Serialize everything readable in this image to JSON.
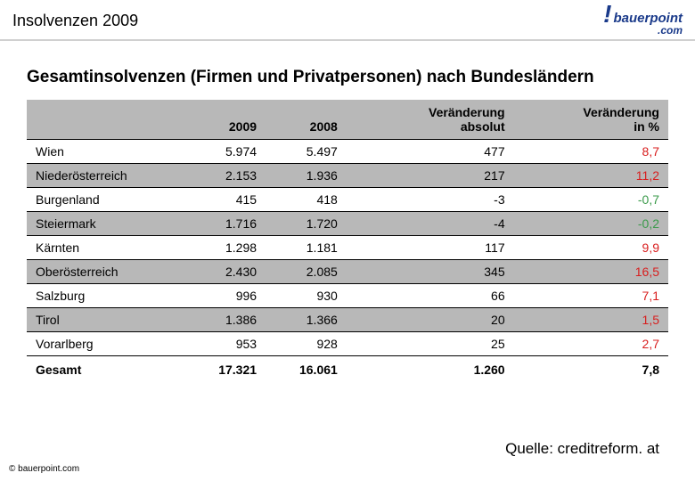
{
  "header": {
    "title": "Insolvenzen 2009",
    "logo_main": "bauerpoint",
    "logo_sub": ".com"
  },
  "main_title": "Gesamtinsolvenzen (Firmen und Privatpersonen) nach Bundesländern",
  "table": {
    "columns": [
      "",
      "2009",
      "2008",
      "Veränderung absolut",
      "Veränderung in %"
    ],
    "col_align": [
      "left",
      "right",
      "right",
      "right",
      "right"
    ],
    "header_bg": "#b8b8b8",
    "alt_row_bg": "#b8b8b8",
    "rows": [
      {
        "label": "Wien",
        "y2009": "5.974",
        "y2008": "5.497",
        "abs": "477",
        "pct": "8,7",
        "pct_sign": "pos",
        "alt": false
      },
      {
        "label": "Niederösterreich",
        "y2009": "2.153",
        "y2008": "1.936",
        "abs": "217",
        "pct": "11,2",
        "pct_sign": "pos",
        "alt": true
      },
      {
        "label": "Burgenland",
        "y2009": "415",
        "y2008": "418",
        "abs": "-3",
        "pct": "-0,7",
        "pct_sign": "neg",
        "alt": false
      },
      {
        "label": "Steiermark",
        "y2009": "1.716",
        "y2008": "1.720",
        "abs": "-4",
        "pct": "-0,2",
        "pct_sign": "neg",
        "alt": true
      },
      {
        "label": "Kärnten",
        "y2009": "1.298",
        "y2008": "1.181",
        "abs": "117",
        "pct": "9,9",
        "pct_sign": "pos",
        "alt": false
      },
      {
        "label": "Oberösterreich",
        "y2009": "2.430",
        "y2008": "2.085",
        "abs": "345",
        "pct": "16,5",
        "pct_sign": "pos",
        "alt": true
      },
      {
        "label": "Salzburg",
        "y2009": "996",
        "y2008": "930",
        "abs": "66",
        "pct": "7,1",
        "pct_sign": "pos",
        "alt": false
      },
      {
        "label": "Tirol",
        "y2009": "1.386",
        "y2008": "1.366",
        "abs": "20",
        "pct": "1,5",
        "pct_sign": "pos",
        "alt": true
      },
      {
        "label": "Vorarlberg",
        "y2009": "953",
        "y2008": "928",
        "abs": "25",
        "pct": "2,7",
        "pct_sign": "pos",
        "alt": false
      }
    ],
    "total": {
      "label": "Gesamt",
      "y2009": "17.321",
      "y2008": "16.061",
      "abs": "1.260",
      "pct": "7,8"
    }
  },
  "source": "Quelle: creditreform. at",
  "copyright": "© bauerpoint.com",
  "colors": {
    "negative": "#3a9a4a",
    "positive": "#d81e1e",
    "logo": "#1a3a8a",
    "header_border": "#d0d0d0"
  },
  "fontsizes": {
    "header_title": 18,
    "main_title": 19,
    "table": 14,
    "source": 17,
    "copyright": 10
  }
}
